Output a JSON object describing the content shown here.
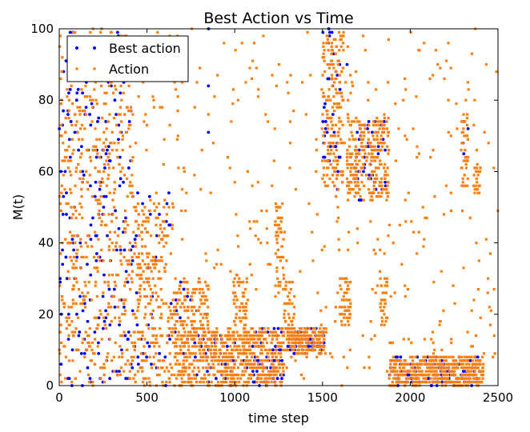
{
  "chart_data": {
    "type": "scatter",
    "title": "Best Action vs Time",
    "xlabel": "time step",
    "ylabel": "M(t)",
    "xlim": [
      0,
      2500
    ],
    "ylim": [
      0,
      100
    ],
    "xticks": [
      "0",
      "500",
      "1000",
      "1500",
      "2000",
      "2500"
    ],
    "yticks": [
      "0",
      "20",
      "40",
      "60",
      "80",
      "100"
    ],
    "grid": false,
    "legend_position": "top-left",
    "series": [
      {
        "name": "Best action",
        "color": "#0000ff",
        "marker": "circle",
        "clusters": [
          {
            "x": [
              0,
              420
            ],
            "y": [
              0,
              100
            ],
            "n": 210
          },
          {
            "x": [
              420,
              650
            ],
            "y": [
              0,
              55
            ],
            "n": 40
          },
          {
            "x": [
              650,
              850
            ],
            "y": [
              0,
              30
            ],
            "n": 30
          },
          {
            "x": [
              850,
              1000
            ],
            "y": [
              0,
              16
            ],
            "n": 25
          },
          {
            "x": [
              1050,
              1280
            ],
            "y": [
              0,
              16
            ],
            "n": 60
          },
          {
            "x": [
              1300,
              1510
            ],
            "y": [
              9,
              16
            ],
            "n": 70
          },
          {
            "x": [
              1500,
              1600
            ],
            "y": [
              55,
              100
            ],
            "n": 35
          },
          {
            "x": [
              1680,
              1860
            ],
            "y": [
              52,
              74
            ],
            "n": 45
          },
          {
            "x": [
              1880,
              2400
            ],
            "y": [
              0,
              8
            ],
            "n": 120
          },
          {
            "x": [
              2300,
              2330
            ],
            "y": [
              60,
              75
            ],
            "n": 4
          }
        ],
        "points": [
          [
            850,
            84
          ],
          [
            850,
            71
          ],
          [
            851,
            100
          ],
          [
            1540,
            98
          ],
          [
            1640,
            90
          ],
          [
            2305,
            65
          ],
          [
            1600,
            64
          ],
          [
            1400,
            15
          ],
          [
            1420,
            13
          ],
          [
            1930,
            3
          ],
          [
            2100,
            8
          ],
          [
            2350,
            0
          ]
        ]
      },
      {
        "name": "Action",
        "color": "#ff7f0e",
        "marker": "square",
        "clusters": [
          {
            "x": [
              0,
              420
            ],
            "y": [
              0,
              100
            ],
            "n": 560
          },
          {
            "x": [
              420,
              650
            ],
            "y": [
              0,
              52
            ],
            "n": 260
          },
          {
            "x": [
              650,
              850
            ],
            "y": [
              0,
              30
            ],
            "n": 280
          },
          {
            "x": [
              850,
              1000
            ],
            "y": [
              0,
              16
            ],
            "n": 170
          },
          {
            "x": [
              990,
              1070
            ],
            "y": [
              0,
              31
            ],
            "n": 110
          },
          {
            "x": [
              1050,
              1280
            ],
            "y": [
              0,
              16
            ],
            "n": 240
          },
          {
            "x": [
              1230,
              1280
            ],
            "y": [
              25,
              52
            ],
            "n": 50
          },
          {
            "x": [
              1280,
              1340
            ],
            "y": [
              12,
              30
            ],
            "n": 40
          },
          {
            "x": [
              1300,
              1510
            ],
            "y": [
              9,
              16
            ],
            "n": 200
          },
          {
            "x": [
              1500,
              1620
            ],
            "y": [
              55,
              100
            ],
            "n": 160
          },
          {
            "x": [
              1600,
              1660
            ],
            "y": [
              17,
              30
            ],
            "n": 50
          },
          {
            "x": [
              1640,
              1880
            ],
            "y": [
              52,
              75
            ],
            "n": 250
          },
          {
            "x": [
              1830,
              1870
            ],
            "y": [
              17,
              30
            ],
            "n": 30
          },
          {
            "x": [
              1880,
              2420
            ],
            "y": [
              0,
              8
            ],
            "n": 480
          },
          {
            "x": [
              2290,
              2330
            ],
            "y": [
              55,
              76
            ],
            "n": 40
          },
          {
            "x": [
              2360,
              2400
            ],
            "y": [
              52,
              62
            ],
            "n": 25
          },
          {
            "x": [
              430,
              2500
            ],
            "y": [
              0,
              100
            ],
            "n": 420
          }
        ],
        "points": []
      }
    ]
  }
}
